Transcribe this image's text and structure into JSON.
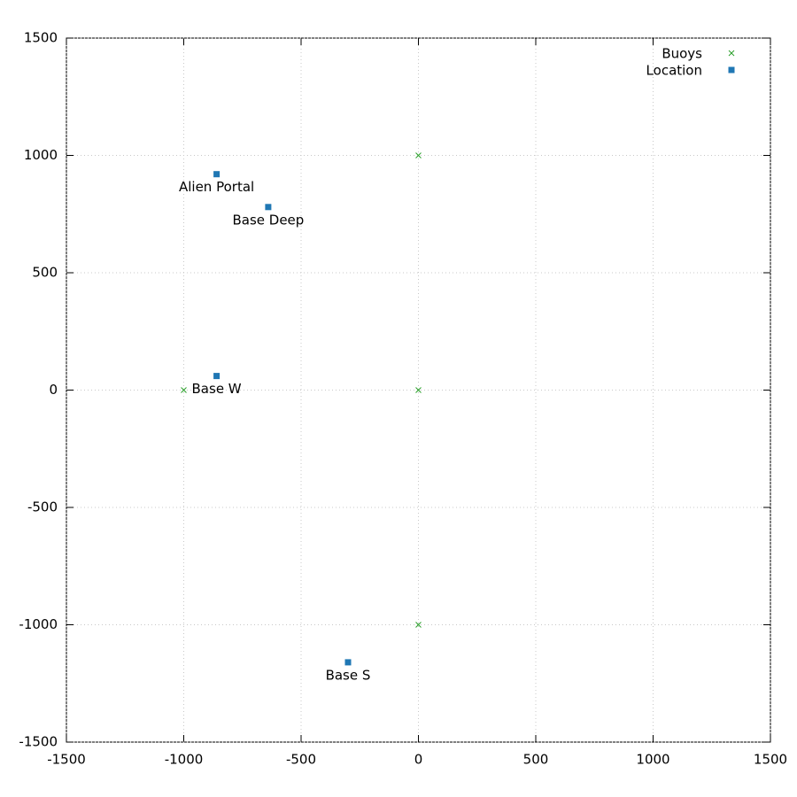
{
  "chart_data": {
    "type": "scatter",
    "xlim": [
      -1500,
      1500
    ],
    "ylim": [
      -1500,
      1500
    ],
    "xticks": [
      -1500,
      -1000,
      -500,
      0,
      500,
      1000,
      1500
    ],
    "yticks": [
      -1500,
      -1000,
      -500,
      0,
      500,
      1000,
      1500
    ],
    "grid": true,
    "legend": "top-right",
    "series": [
      {
        "name": "Buoys",
        "color": "#2ca02c",
        "marker": "x",
        "x": [
          0,
          0,
          -1000,
          0
        ],
        "y": [
          1000,
          0,
          0,
          -1000
        ]
      },
      {
        "name": "Location",
        "color": "#1f77b4",
        "marker": "square",
        "x": [
          -860,
          -640,
          -860,
          -300
        ],
        "y": [
          920,
          780,
          60,
          -1160
        ],
        "labels": [
          "Alien Portal",
          "Base Deep",
          "Base W",
          "Base S"
        ]
      }
    ]
  }
}
